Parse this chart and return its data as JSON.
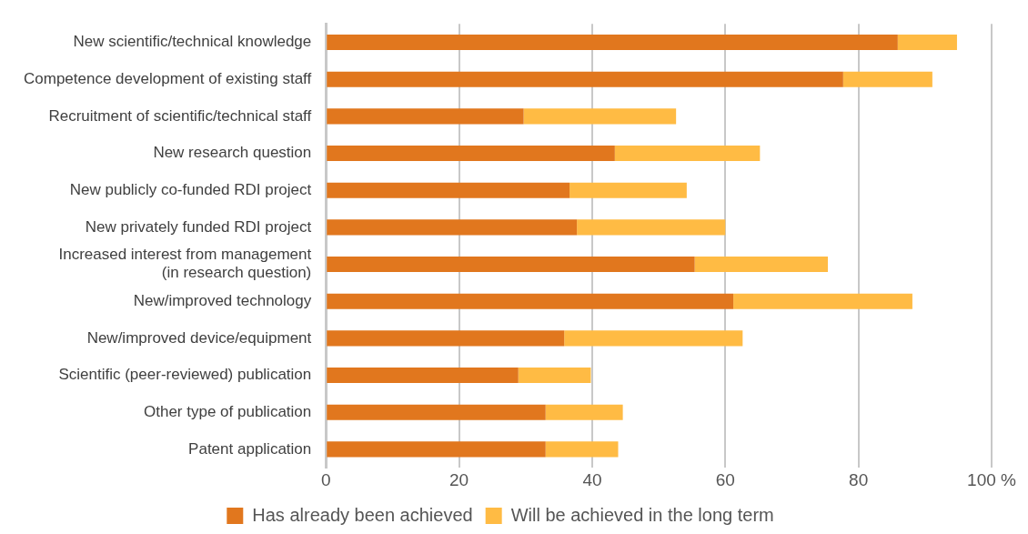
{
  "chart_data": {
    "type": "bar",
    "orientation": "horizontal",
    "stacked": true,
    "categories": [
      "New scientific/technical knowledge",
      "Competence development of existing staff",
      "Recruitment of scientific/technical staff",
      "New research question",
      "New publicly co-funded RDI project",
      "New privately funded RDI project",
      "Increased interest from management\n(in research question)",
      "New/improved technology",
      "New/improved device/equipment",
      "Scientific (peer-reviewed) publication",
      "Other type of publication",
      "Patent application"
    ],
    "series": [
      {
        "name": "Has already been achieved",
        "color": "#e1771e",
        "values": [
          85.9,
          77.7,
          29.7,
          43.4,
          36.6,
          37.7,
          55.4,
          61.2,
          35.8,
          28.9,
          33.0,
          33.0
        ]
      },
      {
        "name": "Will be achieved in the long term",
        "color": "#ffbb44",
        "values": [
          8.9,
          13.4,
          22.9,
          21.8,
          17.6,
          22.3,
          20.0,
          26.9,
          26.8,
          10.9,
          11.6,
          10.9
        ]
      }
    ],
    "xlim": [
      0,
      100
    ],
    "xticks": [
      0,
      20,
      40,
      60,
      80,
      {
        "value": 100,
        "label": "100 %"
      }
    ],
    "grid": "x",
    "legend": "bottom"
  }
}
